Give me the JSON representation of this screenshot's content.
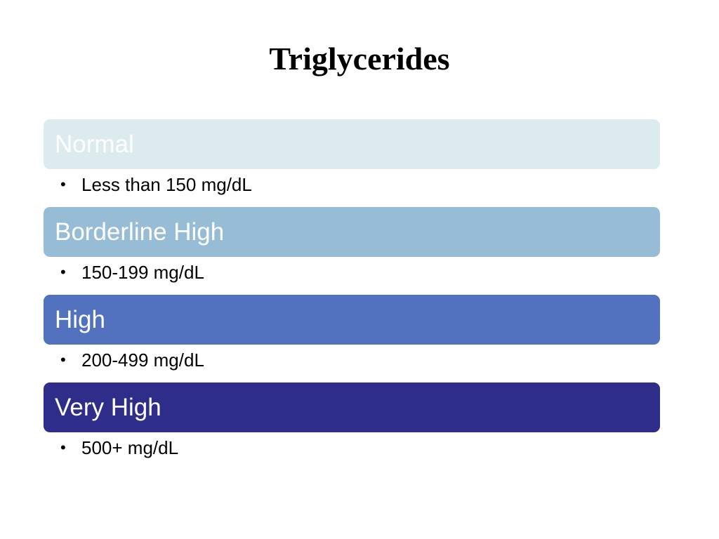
{
  "slide": {
    "title": "Triglycerides",
    "categories": [
      {
        "label": "Normal",
        "color": "#dbebee",
        "bullet": "Less than 150 mg/dL"
      },
      {
        "label": "Borderline High",
        "color": "#97bdd6",
        "bullet": "150-199 mg/dL"
      },
      {
        "label": "High",
        "color": "#5272c0",
        "bullet": "200-499 mg/dL"
      },
      {
        "label": "Very High",
        "color": "#2e2d8a",
        "bullet": "500+ mg/dL"
      }
    ],
    "bullet_icon": "bullet-dot-icon"
  }
}
